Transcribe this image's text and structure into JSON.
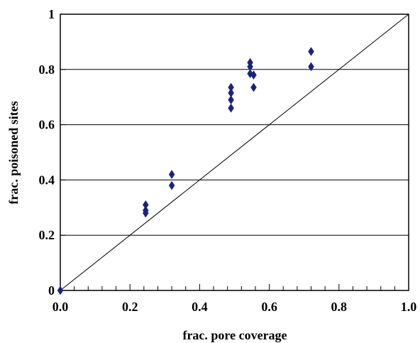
{
  "chart_data": {
    "type": "scatter",
    "title": "",
    "xlabel": "frac. pore coverage",
    "ylabel": "frac. poisoned sites",
    "xlim": [
      0,
      1
    ],
    "ylim": [
      0,
      1
    ],
    "x_ticks": [
      0.0,
      0.2,
      0.4,
      0.6,
      0.8,
      1.0
    ],
    "x_tick_labels": [
      "0.0",
      "0.2",
      "0.4",
      "0.6",
      "0.8",
      "1.0"
    ],
    "x_minor_step": 0.04,
    "y_ticks": [
      0,
      0.2,
      0.4,
      0.6,
      0.8,
      1
    ],
    "y_tick_labels": [
      "0",
      "0.2",
      "0.4",
      "0.6",
      "0.8",
      "1"
    ],
    "grid": "horizontal",
    "legend": "none",
    "marker": "diamond",
    "marker_color": "#1a237e",
    "reference_line": {
      "x": [
        0,
        1
      ],
      "y": [
        0,
        1
      ]
    },
    "points": [
      {
        "x": 0.0,
        "y": 0.0
      },
      {
        "x": 0.245,
        "y": 0.31
      },
      {
        "x": 0.245,
        "y": 0.29
      },
      {
        "x": 0.245,
        "y": 0.28
      },
      {
        "x": 0.32,
        "y": 0.42
      },
      {
        "x": 0.32,
        "y": 0.38
      },
      {
        "x": 0.49,
        "y": 0.735
      },
      {
        "x": 0.49,
        "y": 0.715
      },
      {
        "x": 0.49,
        "y": 0.69
      },
      {
        "x": 0.49,
        "y": 0.66
      },
      {
        "x": 0.545,
        "y": 0.825
      },
      {
        "x": 0.545,
        "y": 0.81
      },
      {
        "x": 0.545,
        "y": 0.785
      },
      {
        "x": 0.555,
        "y": 0.78
      },
      {
        "x": 0.555,
        "y": 0.735
      },
      {
        "x": 0.72,
        "y": 0.865
      },
      {
        "x": 0.72,
        "y": 0.81
      }
    ]
  }
}
